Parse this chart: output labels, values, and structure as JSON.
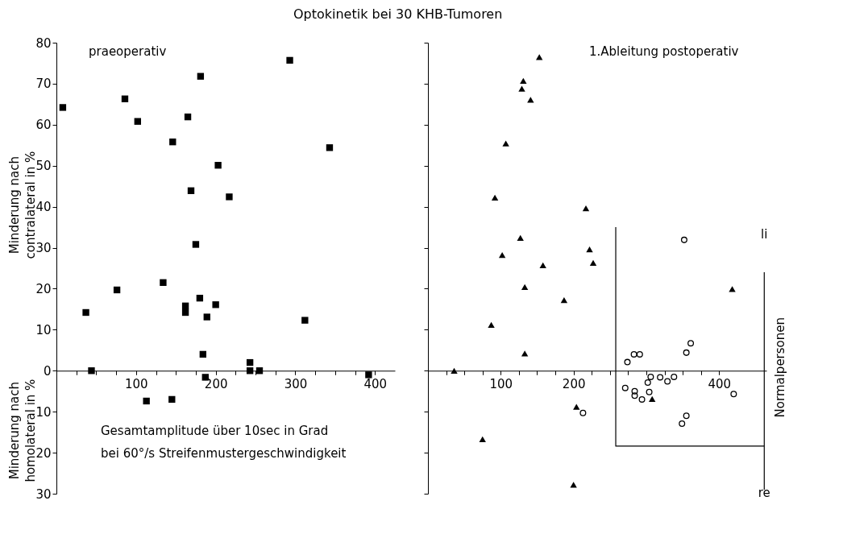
{
  "chart_data": [
    {
      "type": "scatter",
      "title": "Optokinetik bei 30 KHB-Tumoren",
      "subtitle": "praeoperativ",
      "xlabel": "Gesamtamplitude über 10sec in Grad\nbei 60°/s Streifenmustergeschwindigkeit",
      "ylabel": "Minderung nach\ncontralateral in %",
      "annotations": [
        "Minderung nach\nhomolateral in %"
      ],
      "xlim": [
        0,
        425
      ],
      "xticks": [
        {
          "value": 25,
          "label": null
        },
        {
          "value": 50,
          "label": null
        },
        {
          "value": 75,
          "label": null
        },
        100,
        {
          "value": 125,
          "label": null
        },
        {
          "value": 150,
          "label": null
        },
        {
          "value": 175,
          "label": null
        },
        200,
        {
          "value": 225,
          "label": null
        },
        {
          "value": 250,
          "label": null
        },
        {
          "value": 275,
          "label": null
        },
        300,
        {
          "value": 325,
          "label": null
        },
        {
          "value": 350,
          "label": null
        },
        {
          "value": 375,
          "label": null
        },
        400
      ],
      "ylim": [
        -30,
        80
      ],
      "yticks": [
        {
          "value": -30,
          "label": "30"
        },
        {
          "value": -20,
          "label": "20"
        },
        {
          "value": -10,
          "label": "10"
        },
        0,
        10,
        20,
        30,
        40,
        50,
        60,
        70,
        80
      ],
      "grid": false,
      "series": [
        {
          "color": "#000000",
          "marker": "square",
          "x": [
            8,
            37,
            44,
            76,
            86,
            102,
            134,
            146,
            162,
            162,
            165,
            169,
            175,
            180,
            181,
            184,
            189,
            200,
            203,
            217,
            243,
            243,
            255,
            293,
            312,
            343,
            392,
            187,
            113,
            145
          ],
          "values": [
            64.2,
            14.2,
            0,
            19.7,
            66.3,
            60.8,
            21.5,
            55.8,
            15.8,
            14.2,
            61.9,
            43.9,
            30.8,
            17.7,
            71.8,
            4,
            13.1,
            16.1,
            50.1,
            42.4,
            2,
            0,
            0,
            75.7,
            12.3,
            54.4,
            -1,
            -1.6,
            -7.4,
            -7
          ]
        }
      ]
    },
    {
      "type": "scatter",
      "subtitle": "1.Ableitung postoperativ",
      "annotations": [
        "li",
        "re"
      ],
      "xlim": [
        0,
        465
      ],
      "xticks": [
        {
          "value": 25,
          "label": null
        },
        {
          "value": 50,
          "label": null
        },
        {
          "value": 75,
          "label": null
        },
        100,
        {
          "value": 125,
          "label": null
        },
        {
          "value": 150,
          "label": null
        },
        {
          "value": 175,
          "label": null
        },
        200,
        {
          "value": 225,
          "label": null
        },
        {
          "value": 250,
          "label": null
        },
        {
          "value": 275,
          "label": null
        },
        {
          "value": 300,
          "label": null
        },
        {
          "value": 325,
          "label": null
        },
        {
          "value": 350,
          "label": null
        },
        {
          "value": 375,
          "label": null
        },
        400
      ],
      "ylim": [
        -30,
        80
      ],
      "yticks": [
        -30,
        -20,
        -10,
        0,
        10,
        20,
        30,
        40,
        50,
        60,
        70,
        80
      ],
      "tick_labels": "x",
      "grid": false,
      "series": [
        {
          "color": "#000000",
          "marker": "triangle",
          "x": [
            36,
            153,
            131,
            129,
            141,
            107,
            92,
            217,
            127,
            102,
            222,
            158,
            227,
            133,
            418,
            187,
            87,
            133,
            204,
            75,
            200,
            308
          ],
          "values": [
            0,
            76.5,
            70.7,
            68.8,
            66.1,
            55.4,
            42.2,
            39.6,
            32.4,
            28.2,
            29.6,
            25.7,
            26.3,
            20.4,
            19.9,
            17.2,
            11.2,
            4.2,
            -8.8,
            -16.7,
            -27.8,
            -6.9
          ]
        },
        {
          "name": "Normalpersonen",
          "color": "#000000",
          "marker": "circle",
          "x": [
            352,
            361,
            355,
            274,
            283,
            291,
            271,
            284,
            284,
            294,
            302,
            306,
            304,
            319,
            329,
            338,
            349,
            355,
            420,
            213
          ],
          "values": [
            31.9,
            6.7,
            4.4,
            2.1,
            4,
            4,
            -4.2,
            -5,
            -6.1,
            -7,
            -2.9,
            -1.5,
            -5.2,
            -1.6,
            -2.6,
            -1.5,
            -12.9,
            -11,
            -5.7,
            -10.3
          ]
        },
        {
          "type": "line",
          "color": "#000000",
          "marker": "none",
          "x": [
            258,
            258,
            462
          ],
          "values": [
            35,
            -18.4,
            -18.4
          ]
        },
        {
          "type": "line",
          "color": "#000000",
          "marker": "none",
          "x": [
            462,
            462
          ],
          "values": [
            24,
            -29
          ]
        }
      ]
    }
  ]
}
